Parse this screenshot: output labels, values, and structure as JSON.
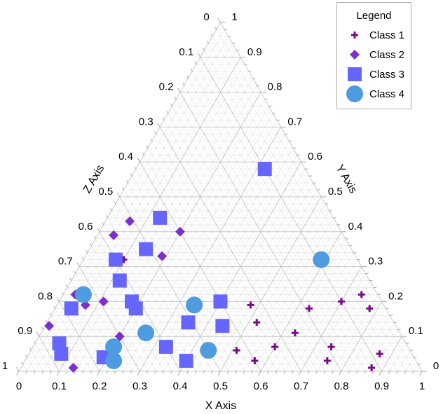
{
  "chart_data": {
    "type": "scatter",
    "subtype": "ternary",
    "title": "",
    "axes": {
      "x": {
        "label": "X Axis",
        "range": [
          0,
          1
        ],
        "ticks": [
          "0",
          "0.1",
          "0.2",
          "0.3",
          "0.4",
          "0.5",
          "0.6",
          "0.7",
          "0.8",
          "0.9",
          "1"
        ]
      },
      "y": {
        "label": "Y Axis",
        "range": [
          0,
          1
        ],
        "ticks": [
          "0",
          "0.1",
          "0.2",
          "0.3",
          "0.4",
          "0.5",
          "0.6",
          "0.7",
          "0.8",
          "0.9",
          "1"
        ]
      },
      "z": {
        "label": "Z Axis",
        "range": [
          0,
          1
        ],
        "ticks": [
          "0",
          "0.1",
          "0.2",
          "0.3",
          "0.4",
          "0.5",
          "0.6",
          "0.7",
          "0.8",
          "0.9",
          "1"
        ]
      }
    },
    "grid": true,
    "legend": {
      "title": "Legend",
      "placement": "top-right"
    },
    "series": [
      {
        "name": "Class 1",
        "marker": "plus",
        "color": "#7a0a8a",
        "points": [
          [
            0.1,
            0.32,
            0.58
          ],
          [
            0.48,
            0.19,
            0.33
          ],
          [
            0.52,
            0.14,
            0.34
          ],
          [
            0.63,
            0.18,
            0.19
          ],
          [
            0.7,
            0.2,
            0.1
          ],
          [
            0.74,
            0.22,
            0.04
          ],
          [
            0.78,
            0.18,
            0.04
          ],
          [
            0.63,
            0.11,
            0.26
          ],
          [
            0.6,
            0.07,
            0.33
          ],
          [
            0.51,
            0.06,
            0.43
          ],
          [
            0.57,
            0.03,
            0.4
          ],
          [
            0.74,
            0.07,
            0.19
          ],
          [
            0.75,
            0.03,
            0.22
          ],
          [
            0.87,
            0.05,
            0.08
          ],
          [
            0.87,
            0.01,
            0.12
          ]
        ]
      },
      {
        "name": "Class 2",
        "marker": "diamond",
        "color": "#7d2fcc",
        "points": [
          [
            0.06,
            0.43,
            0.51
          ],
          [
            0.04,
            0.39,
            0.57
          ],
          [
            0.2,
            0.4,
            0.4
          ],
          [
            0.19,
            0.33,
            0.48
          ],
          [
            0.03,
            0.22,
            0.75
          ],
          [
            0.07,
            0.19,
            0.74
          ],
          [
            0.11,
            0.2,
            0.69
          ],
          [
            0.01,
            0.13,
            0.86
          ],
          [
            0.2,
            0.1,
            0.7
          ],
          [
            0.13,
            0.01,
            0.86
          ]
        ]
      },
      {
        "name": "Class 3",
        "marker": "square",
        "color": "#6666ff",
        "points": [
          [
            0.32,
            0.58,
            0.1
          ],
          [
            0.13,
            0.44,
            0.43
          ],
          [
            0.14,
            0.35,
            0.51
          ],
          [
            0.08,
            0.32,
            0.6
          ],
          [
            0.12,
            0.26,
            0.62
          ],
          [
            0.18,
            0.2,
            0.62
          ],
          [
            0.2,
            0.18,
            0.62
          ],
          [
            0.04,
            0.18,
            0.78
          ],
          [
            0.4,
            0.2,
            0.4
          ],
          [
            0.35,
            0.14,
            0.51
          ],
          [
            0.44,
            0.13,
            0.43
          ],
          [
            0.06,
            0.08,
            0.86
          ],
          [
            0.08,
            0.05,
            0.87
          ],
          [
            0.33,
            0.07,
            0.6
          ],
          [
            0.19,
            0.04,
            0.77
          ],
          [
            0.4,
            0.03,
            0.57
          ]
        ]
      },
      {
        "name": "Class 4",
        "marker": "circle",
        "color": "#4f9be0",
        "points": [
          [
            0.59,
            0.32,
            0.09
          ],
          [
            0.05,
            0.22,
            0.73
          ],
          [
            0.34,
            0.19,
            0.47
          ],
          [
            0.26,
            0.11,
            0.63
          ],
          [
            0.2,
            0.07,
            0.73
          ],
          [
            0.44,
            0.06,
            0.5
          ],
          [
            0.22,
            0.03,
            0.75
          ]
        ]
      }
    ]
  }
}
